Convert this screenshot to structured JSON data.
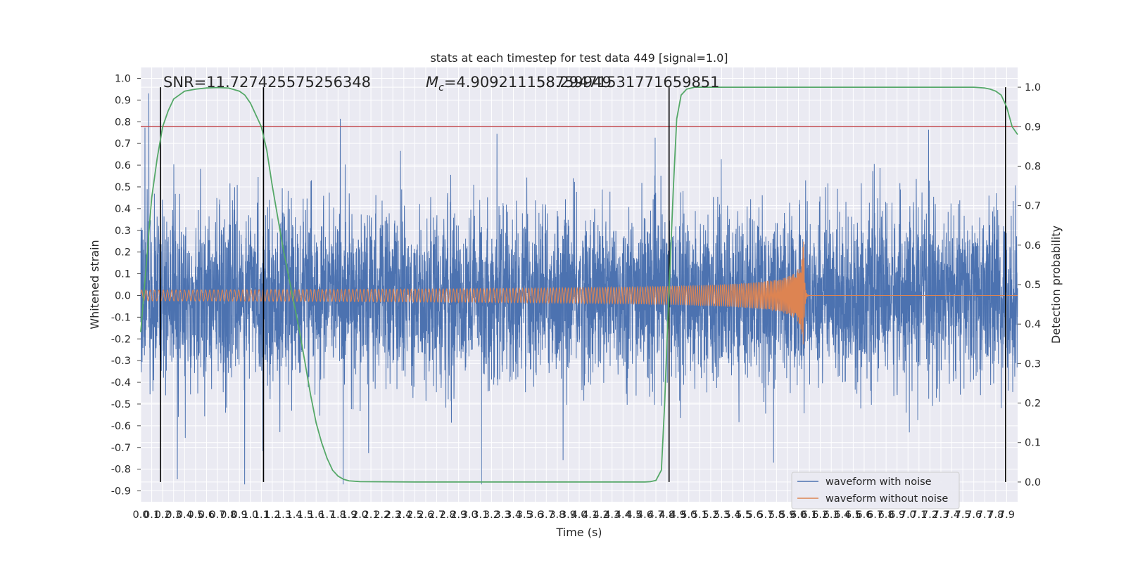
{
  "chart_data": {
    "type": "line",
    "title": "stats at each timestep for test data 449 [signal=1.0]",
    "xlabel": "Time (s)",
    "ylabel": "Whitened strain",
    "ylabel_right": "Detection probability",
    "xlim": [
      0.0,
      8.0
    ],
    "ylim": [
      -0.95,
      1.05
    ],
    "ylim_right": [
      -0.05,
      1.05
    ],
    "x_ticks": [
      "0.0",
      "0.1",
      "0.2",
      "0.3",
      "0.4",
      "0.5",
      "0.6",
      "0.7",
      "0.8",
      "0.9",
      "1.0",
      "1.1",
      "1.2",
      "1.3",
      "1.4",
      "1.5",
      "1.6",
      "1.7",
      "1.8",
      "1.9",
      "2.0",
      "2.1",
      "2.2",
      "2.3",
      "2.4",
      "2.5",
      "2.6",
      "2.7",
      "2.8",
      "2.9",
      "3.0",
      "3.1",
      "3.2",
      "3.3",
      "3.4",
      "3.5",
      "3.6",
      "3.7",
      "3.8",
      "3.9",
      "4.0",
      "4.1",
      "4.2",
      "4.3",
      "4.4",
      "4.5",
      "4.6",
      "4.7",
      "4.8",
      "4.9",
      "5.0",
      "5.1",
      "5.2",
      "5.3",
      "5.4",
      "5.5",
      "5.6",
      "5.7",
      "5.8",
      "5.9",
      "6.0",
      "6.1",
      "6.2",
      "6.3",
      "6.4",
      "6.5",
      "6.6",
      "6.7",
      "6.8",
      "6.9",
      "7.0",
      "7.1",
      "7.2",
      "7.3",
      "7.4",
      "7.5",
      "7.6",
      "7.7",
      "7.8",
      "7.9"
    ],
    "y_ticks": [
      "1.0",
      "0.9",
      "0.8",
      "0.7",
      "0.6",
      "0.5",
      "0.4",
      "0.3",
      "0.2",
      "0.1",
      "0.0",
      "-0.1",
      "-0.2",
      "-0.3",
      "-0.4",
      "-0.5",
      "-0.6",
      "-0.7",
      "-0.8",
      "-0.9"
    ],
    "y_ticks_right": [
      "1.0",
      "0.9",
      "0.8",
      "0.7",
      "0.6",
      "0.5",
      "0.4",
      "0.3",
      "0.2",
      "0.1",
      "0.0"
    ],
    "annotations": {
      "snr": "SNR=11.727425575256348",
      "mc_symbol": "M",
      "mc_sub": "c",
      "mc_value": "=4.909211158759949",
      "overlap": "58.29471531771659851"
    },
    "threshold": 0.9,
    "vertical_lines": [
      0.18,
      1.12,
      4.82,
      7.89
    ],
    "noise": {
      "amplitude_range": [
        -0.87,
        1.0
      ],
      "duration": 8.0
    },
    "signal": {
      "t_merge": 6.05,
      "peak_amplitude": 0.25,
      "base_amplitude": 0.025
    },
    "probability": [
      [
        0.0,
        0.38
      ],
      [
        0.05,
        0.55
      ],
      [
        0.1,
        0.72
      ],
      [
        0.15,
        0.82
      ],
      [
        0.2,
        0.9
      ],
      [
        0.25,
        0.94
      ],
      [
        0.3,
        0.97
      ],
      [
        0.4,
        0.99
      ],
      [
        0.5,
        0.995
      ],
      [
        0.6,
        0.998
      ],
      [
        0.7,
        0.999
      ],
      [
        0.8,
        0.998
      ],
      [
        0.9,
        0.99
      ],
      [
        0.95,
        0.98
      ],
      [
        1.0,
        0.96
      ],
      [
        1.05,
        0.93
      ],
      [
        1.1,
        0.9
      ],
      [
        1.15,
        0.84
      ],
      [
        1.2,
        0.75
      ],
      [
        1.25,
        0.67
      ],
      [
        1.3,
        0.59
      ],
      [
        1.35,
        0.52
      ],
      [
        1.4,
        0.45
      ],
      [
        1.45,
        0.38
      ],
      [
        1.5,
        0.3
      ],
      [
        1.55,
        0.22
      ],
      [
        1.6,
        0.15
      ],
      [
        1.65,
        0.1
      ],
      [
        1.7,
        0.06
      ],
      [
        1.75,
        0.03
      ],
      [
        1.8,
        0.015
      ],
      [
        1.85,
        0.007
      ],
      [
        1.9,
        0.003
      ],
      [
        2.0,
        0.001
      ],
      [
        2.5,
        0.0
      ],
      [
        3.0,
        0.0
      ],
      [
        3.5,
        0.0
      ],
      [
        4.0,
        0.0
      ],
      [
        4.5,
        0.0
      ],
      [
        4.6,
        0.0
      ],
      [
        4.65,
        0.001
      ],
      [
        4.7,
        0.004
      ],
      [
        4.75,
        0.03
      ],
      [
        4.78,
        0.2
      ],
      [
        4.8,
        0.35
      ],
      [
        4.83,
        0.55
      ],
      [
        4.86,
        0.75
      ],
      [
        4.89,
        0.92
      ],
      [
        4.93,
        0.98
      ],
      [
        4.98,
        0.995
      ],
      [
        5.05,
        1.0
      ],
      [
        6.0,
        1.0
      ],
      [
        7.0,
        1.0
      ],
      [
        7.6,
        1.0
      ],
      [
        7.7,
        0.998
      ],
      [
        7.75,
        0.995
      ],
      [
        7.8,
        0.99
      ],
      [
        7.85,
        0.98
      ],
      [
        7.9,
        0.95
      ],
      [
        7.95,
        0.9
      ],
      [
        8.0,
        0.88
      ]
    ],
    "legend": {
      "position": "lower-right",
      "entries": [
        {
          "label": "waveform with noise",
          "color": "#4c72b0"
        },
        {
          "label": "waveform without noise",
          "color": "#dd8452"
        }
      ]
    },
    "colors": {
      "background": "#eaeaf2",
      "grid": "#ffffff",
      "noise": "#4c72b0",
      "signal": "#dd8452",
      "probability": "#55a868",
      "threshold": "#c44e52",
      "vertical": "#000000"
    },
    "grid": true
  }
}
